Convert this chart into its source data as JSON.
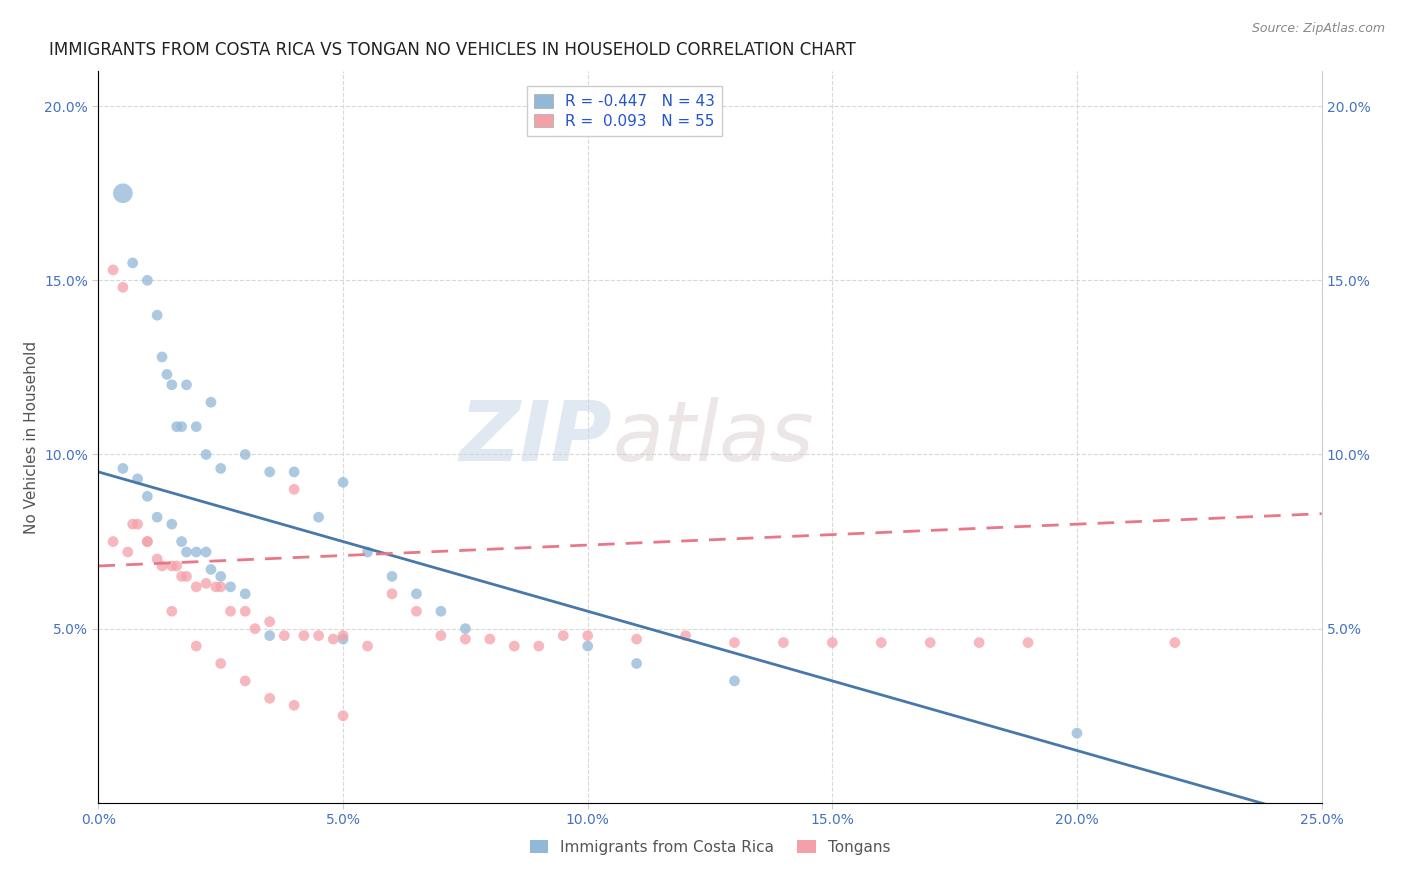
{
  "title": "IMMIGRANTS FROM COSTA RICA VS TONGAN NO VEHICLES IN HOUSEHOLD CORRELATION CHART",
  "source_text": "Source: ZipAtlas.com",
  "ylabel": "No Vehicles in Household",
  "xlabel": "",
  "xlim": [
    0.0,
    0.25
  ],
  "ylim": [
    0.0,
    0.21
  ],
  "xtick_labels": [
    "0.0%",
    "5.0%",
    "10.0%",
    "15.0%",
    "20.0%",
    "25.0%"
  ],
  "xtick_values": [
    0.0,
    0.05,
    0.1,
    0.15,
    0.2,
    0.25
  ],
  "ytick_labels": [
    "5.0%",
    "10.0%",
    "15.0%",
    "20.0%"
  ],
  "ytick_values": [
    0.05,
    0.1,
    0.15,
    0.2
  ],
  "legend_label_1": "R = -0.447   N = 43",
  "legend_label_2": "R =  0.093   N = 55",
  "color_blue": "#92b8d8",
  "color_pink": "#f4a0a8",
  "color_blue_line": "#4878a8",
  "color_pink_line": "#e87888",
  "watermark_zip": "ZIP",
  "watermark_atlas": "atlas",
  "blue_scatter_x": [
    0.005,
    0.01,
    0.012,
    0.013,
    0.014,
    0.015,
    0.016,
    0.017,
    0.018,
    0.02,
    0.022,
    0.023,
    0.025,
    0.03,
    0.035,
    0.04,
    0.045,
    0.05,
    0.055,
    0.06,
    0.065,
    0.07,
    0.075,
    0.1,
    0.11,
    0.13,
    0.005,
    0.008,
    0.01,
    0.012,
    0.015,
    0.017,
    0.018,
    0.02,
    0.022,
    0.023,
    0.025,
    0.027,
    0.03,
    0.035,
    0.05,
    0.2,
    0.007
  ],
  "blue_scatter_y": [
    0.175,
    0.15,
    0.14,
    0.128,
    0.123,
    0.12,
    0.108,
    0.108,
    0.12,
    0.108,
    0.1,
    0.115,
    0.096,
    0.1,
    0.095,
    0.095,
    0.082,
    0.092,
    0.072,
    0.065,
    0.06,
    0.055,
    0.05,
    0.045,
    0.04,
    0.035,
    0.096,
    0.093,
    0.088,
    0.082,
    0.08,
    0.075,
    0.072,
    0.072,
    0.072,
    0.067,
    0.065,
    0.062,
    0.06,
    0.048,
    0.047,
    0.02,
    0.155
  ],
  "blue_scatter_size": [
    200,
    60,
    60,
    60,
    60,
    60,
    60,
    60,
    60,
    60,
    60,
    60,
    60,
    60,
    60,
    60,
    60,
    60,
    60,
    60,
    60,
    60,
    60,
    60,
    60,
    60,
    60,
    60,
    60,
    60,
    60,
    60,
    60,
    60,
    60,
    60,
    60,
    60,
    60,
    60,
    60,
    60,
    60
  ],
  "pink_scatter_x": [
    0.003,
    0.005,
    0.007,
    0.008,
    0.01,
    0.012,
    0.013,
    0.015,
    0.016,
    0.017,
    0.018,
    0.02,
    0.022,
    0.024,
    0.025,
    0.027,
    0.03,
    0.032,
    0.035,
    0.038,
    0.04,
    0.042,
    0.045,
    0.048,
    0.05,
    0.055,
    0.06,
    0.065,
    0.07,
    0.075,
    0.08,
    0.085,
    0.09,
    0.095,
    0.1,
    0.11,
    0.12,
    0.13,
    0.14,
    0.15,
    0.16,
    0.17,
    0.18,
    0.19,
    0.22,
    0.003,
    0.006,
    0.01,
    0.015,
    0.02,
    0.025,
    0.03,
    0.035,
    0.04,
    0.05
  ],
  "pink_scatter_y": [
    0.153,
    0.148,
    0.08,
    0.08,
    0.075,
    0.07,
    0.068,
    0.068,
    0.068,
    0.065,
    0.065,
    0.062,
    0.063,
    0.062,
    0.062,
    0.055,
    0.055,
    0.05,
    0.052,
    0.048,
    0.09,
    0.048,
    0.048,
    0.047,
    0.048,
    0.045,
    0.06,
    0.055,
    0.048,
    0.047,
    0.047,
    0.045,
    0.045,
    0.048,
    0.048,
    0.047,
    0.048,
    0.046,
    0.046,
    0.046,
    0.046,
    0.046,
    0.046,
    0.046,
    0.046,
    0.075,
    0.072,
    0.075,
    0.055,
    0.045,
    0.04,
    0.035,
    0.03,
    0.028,
    0.025
  ],
  "pink_scatter_size": [
    60,
    60,
    60,
    60,
    60,
    60,
    60,
    60,
    60,
    60,
    60,
    60,
    60,
    60,
    60,
    60,
    60,
    60,
    60,
    60,
    60,
    60,
    60,
    60,
    60,
    60,
    60,
    60,
    60,
    60,
    60,
    60,
    60,
    60,
    60,
    60,
    60,
    60,
    60,
    60,
    60,
    60,
    60,
    60,
    60,
    60,
    60,
    60,
    60,
    60,
    60,
    60,
    60,
    60,
    60
  ],
  "blue_line_x": [
    0.0,
    0.25
  ],
  "blue_line_y": [
    0.095,
    -0.005
  ],
  "pink_line_x": [
    0.0,
    0.25
  ],
  "pink_line_y": [
    0.068,
    0.083
  ],
  "grid_color": "#d8d8d8",
  "background_color": "#ffffff",
  "title_fontsize": 12,
  "label_fontsize": 11,
  "tick_fontsize": 10
}
